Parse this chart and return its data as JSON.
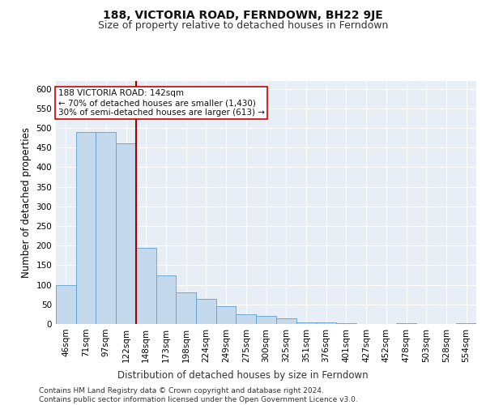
{
  "title": "188, VICTORIA ROAD, FERNDOWN, BH22 9JE",
  "subtitle": "Size of property relative to detached houses in Ferndown",
  "xlabel": "Distribution of detached houses by size in Ferndown",
  "ylabel": "Number of detached properties",
  "categories": [
    "46sqm",
    "71sqm",
    "97sqm",
    "122sqm",
    "148sqm",
    "173sqm",
    "198sqm",
    "224sqm",
    "249sqm",
    "275sqm",
    "300sqm",
    "325sqm",
    "351sqm",
    "376sqm",
    "401sqm",
    "427sqm",
    "452sqm",
    "478sqm",
    "503sqm",
    "528sqm",
    "554sqm"
  ],
  "values": [
    100,
    490,
    490,
    460,
    195,
    125,
    80,
    65,
    45,
    25,
    20,
    15,
    5,
    5,
    3,
    0,
    0,
    3,
    0,
    0,
    3
  ],
  "bar_color": "#c5d9ed",
  "bar_edge_color": "#5a9fd4",
  "vline_x": 3.5,
  "vline_color": "#aa0000",
  "annotation_text": "188 VICTORIA ROAD: 142sqm\n← 70% of detached houses are smaller (1,430)\n30% of semi-detached houses are larger (613) →",
  "annotation_box_color": "#ffffff",
  "annotation_box_edge": "#cc0000",
  "footer": "Contains HM Land Registry data © Crown copyright and database right 2024.\nContains public sector information licensed under the Open Government Licence v3.0.",
  "ylim": [
    0,
    620
  ],
  "yticks": [
    0,
    50,
    100,
    150,
    200,
    250,
    300,
    350,
    400,
    450,
    500,
    550,
    600
  ],
  "bg_color": "#e8eef5",
  "grid_color": "#ffffff",
  "title_fontsize": 10,
  "subtitle_fontsize": 9,
  "axis_label_fontsize": 8.5,
  "tick_fontsize": 7.5,
  "footer_fontsize": 6.5,
  "annotation_fontsize": 7.5
}
